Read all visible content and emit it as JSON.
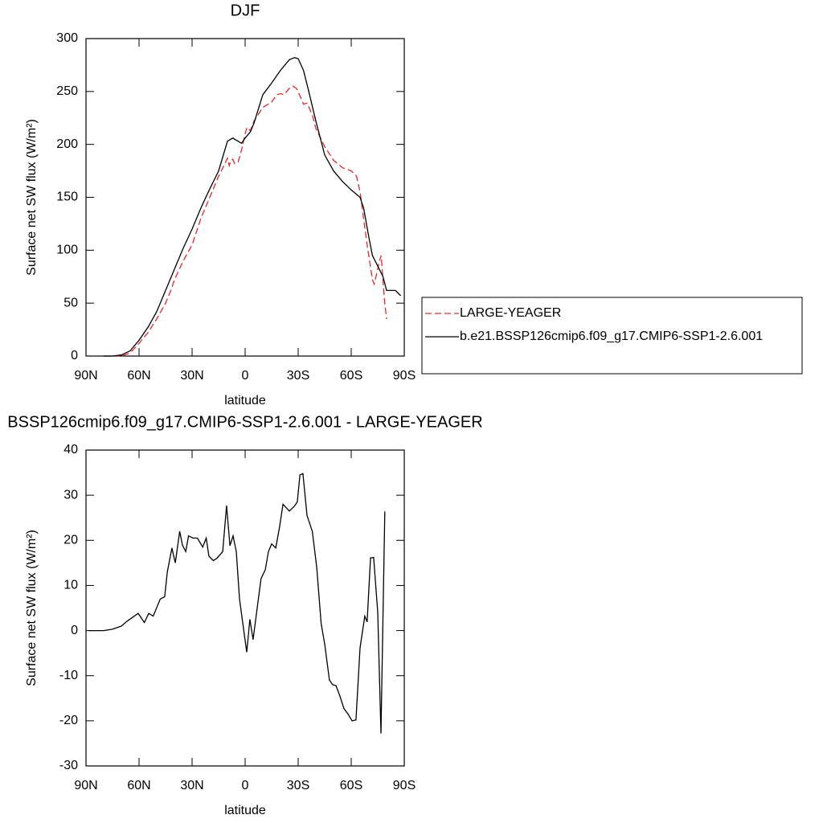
{
  "chart_data": [
    {
      "type": "line",
      "title": "DJF",
      "x_label": "latitude",
      "y_label": "Surface net SW flux (W/m²)",
      "xlim": [
        90,
        -90
      ],
      "ylim": [
        0,
        300
      ],
      "xticks": [
        {
          "value": 90,
          "label": "90N"
        },
        {
          "value": 60,
          "label": "60N"
        },
        {
          "value": 30,
          "label": "30N"
        },
        0,
        {
          "value": -30,
          "label": "30S"
        },
        {
          "value": -60,
          "label": "60S"
        },
        {
          "value": -90,
          "label": "90S"
        }
      ],
      "yticks": [
        0,
        50,
        100,
        150,
        200,
        250,
        300
      ],
      "legend": "right",
      "series": [
        {
          "name": "LARGE-YEAGER",
          "color": "#e8262a",
          "line_style": "dashed",
          "x": [
            80,
            75,
            70,
            65,
            60,
            55,
            50,
            45,
            42,
            40,
            35,
            30,
            25,
            20,
            15,
            12,
            10,
            9,
            8,
            7,
            6,
            4,
            2,
            0,
            -1,
            -3,
            -5,
            -10,
            -15,
            -18,
            -20,
            -22,
            -25,
            -27,
            -29,
            -31,
            -33,
            -35,
            -38,
            -40,
            -45,
            -50,
            -55,
            -60,
            -63,
            -65,
            -67,
            -69,
            -72,
            -73,
            -74,
            -76,
            -77,
            -78,
            -79,
            -80
          ],
          "values": [
            0,
            0,
            0,
            3,
            12,
            22,
            35,
            50,
            62,
            72,
            90,
            105,
            130,
            150,
            170,
            180,
            187,
            180,
            185,
            186,
            182,
            183,
            195,
            210,
            216,
            213,
            222,
            235,
            240,
            247,
            248,
            247,
            253,
            255,
            253,
            246,
            238,
            239,
            228,
            215,
            198,
            185,
            178,
            175,
            170,
            155,
            130,
            105,
            72,
            68,
            75,
            90,
            95,
            70,
            50,
            35
          ]
        },
        {
          "name": "b.e21.BSSP126cmip6.f09_g17.CMIP6-SSP1-2.6.001",
          "color": "#000000",
          "line_style": "solid",
          "x": [
            80,
            75,
            70,
            65,
            60,
            55,
            50,
            45,
            40,
            35,
            30,
            25,
            20,
            15,
            10,
            7,
            5,
            2,
            0,
            -3,
            -5,
            -10,
            -15,
            -20,
            -25,
            -28,
            -30,
            -33,
            -36,
            -40,
            -45,
            -50,
            -55,
            -60,
            -65,
            -67,
            -70,
            -72,
            -75,
            -78,
            -80,
            -85,
            -88
          ],
          "values": [
            0,
            0,
            1,
            5,
            15,
            27,
            42,
            62,
            82,
            102,
            120,
            140,
            158,
            175,
            203,
            206,
            204,
            201,
            206,
            212,
            220,
            247,
            258,
            270,
            280,
            282,
            281,
            270,
            250,
            222,
            190,
            175,
            165,
            157,
            150,
            140,
            112,
            95,
            85,
            75,
            62,
            62,
            57
          ]
        }
      ]
    },
    {
      "type": "line",
      "title": "BSSP126cmip6.f09_g17.CMIP6-SSP1-2.6.001 - LARGE-YEAGER",
      "x_label": "latitude",
      "y_label": "Surface net SW flux (W/m²)",
      "xlim": [
        90,
        -90
      ],
      "ylim": [
        -30,
        40
      ],
      "xticks": [
        {
          "value": 90,
          "label": "90N"
        },
        {
          "value": 60,
          "label": "60N"
        },
        {
          "value": 30,
          "label": "30N"
        },
        0,
        {
          "value": -30,
          "label": "30S"
        },
        {
          "value": -60,
          "label": "60S"
        },
        {
          "value": -90,
          "label": "90S"
        }
      ],
      "yticks": [
        -30,
        -20,
        -10,
        0,
        10,
        20,
        30,
        40
      ],
      "series": [
        {
          "color": "#000000",
          "line_style": "solid",
          "x": [
            88.6,
            80,
            75,
            70,
            67,
            60.5,
            57,
            54.5,
            52,
            48,
            45.5,
            44,
            41.4,
            39.5,
            37,
            35.5,
            33.6,
            32,
            29.5,
            27,
            24,
            22,
            20.5,
            18,
            16,
            12.7,
            10.5,
            8.6,
            6.8,
            5,
            3.2,
            -0.9,
            -2.7,
            -4.5,
            -6.8,
            -9,
            -11.4,
            -13.2,
            -15,
            -17.3,
            -19.5,
            -21.4,
            -25,
            -27.7,
            -29.5,
            -31,
            -32.7,
            -35,
            -38,
            -40.5,
            -43,
            -45,
            -47.7,
            -49.5,
            -51.4,
            -53.6,
            -55.9,
            -58.2,
            -60.5,
            -62.7,
            -65,
            -67.7,
            -69,
            -70.9,
            -72.7,
            -75,
            -76.8,
            -79
          ],
          "values": [
            0,
            0,
            0.3,
            1,
            2,
            3.8,
            1.8,
            3.8,
            3.2,
            7,
            7.5,
            13,
            18.3,
            15,
            22,
            19,
            17.5,
            21,
            20.5,
            20.5,
            18.5,
            20.5,
            16.5,
            15.5,
            16,
            17.5,
            27.7,
            18.8,
            21,
            17.5,
            7,
            -4.8,
            2.5,
            -2,
            5,
            11.5,
            13.5,
            17.5,
            19.2,
            18.3,
            23,
            28,
            26.5,
            27.5,
            28.5,
            34.5,
            34.8,
            25.5,
            22,
            14,
            1.5,
            -3,
            -11,
            -12,
            -12.2,
            -14.5,
            -17.3,
            -18.5,
            -20,
            -19.8,
            -3.8,
            3.2,
            1.9,
            16.1,
            16.2,
            4,
            -22.8,
            26.4
          ]
        }
      ]
    }
  ]
}
